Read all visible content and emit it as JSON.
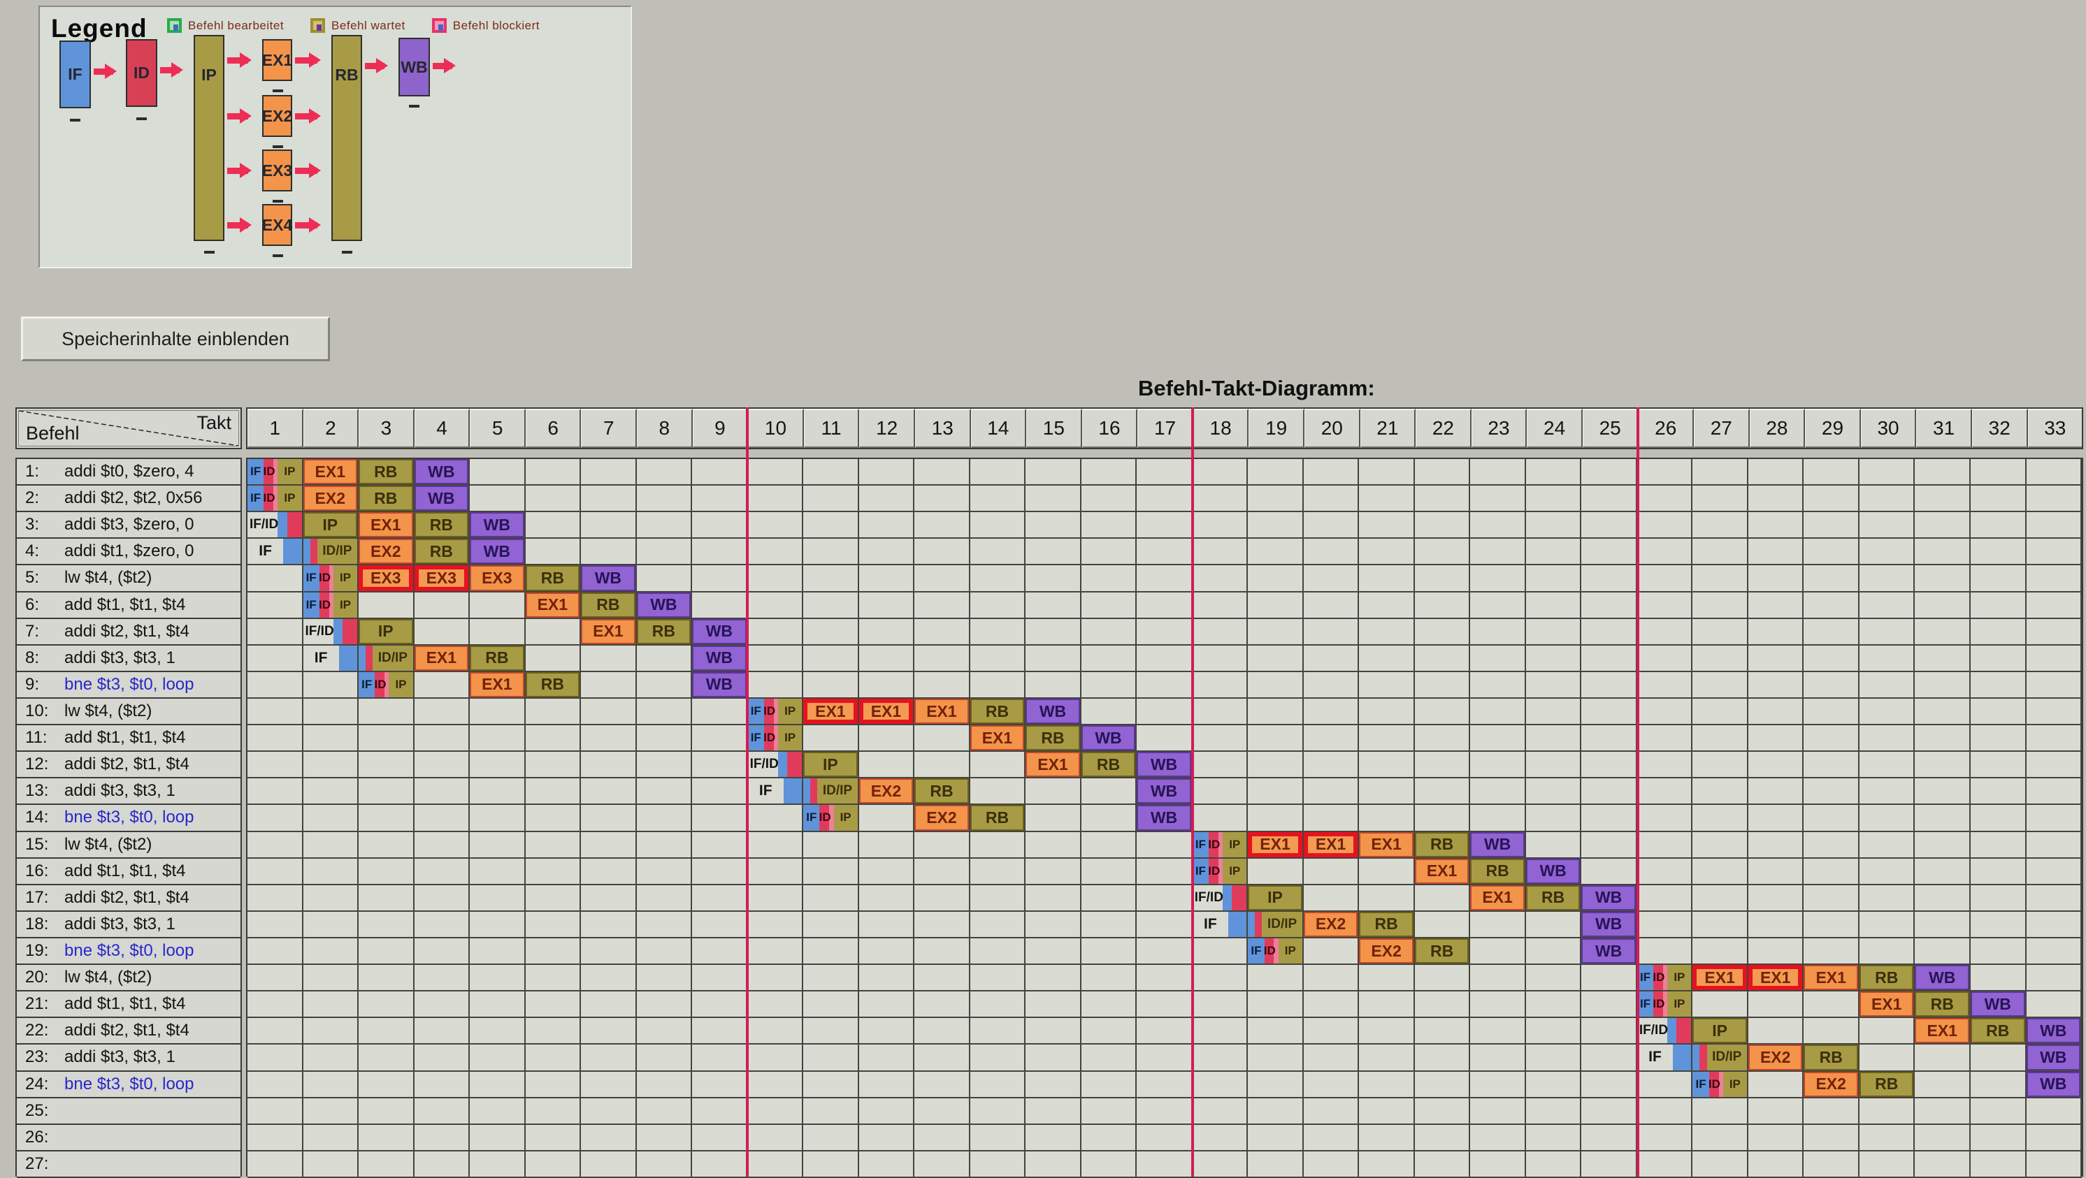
{
  "legend": {
    "title": "Legend",
    "items": [
      {
        "label": "Befehl bearbeitet",
        "type": "processed"
      },
      {
        "label": "Befehl wartet",
        "type": "waiting"
      },
      {
        "label": "Befehl blockiert",
        "type": "blocked"
      }
    ],
    "stages": [
      "IF",
      "ID",
      "IP",
      "EX1",
      "EX2",
      "EX3",
      "EX4",
      "RB",
      "WB"
    ]
  },
  "memory_button": {
    "label": "Speicherinhalte einblenden"
  },
  "diagram": {
    "title": "Befehl-Takt-Diagramm:",
    "corner": {
      "top": "Takt",
      "bottom": "Befehl"
    },
    "cycles": [
      1,
      2,
      3,
      4,
      5,
      6,
      7,
      8,
      9,
      10,
      11,
      12,
      13,
      14,
      15,
      16,
      17,
      18,
      19,
      20,
      21,
      22,
      23,
      24,
      25,
      26,
      27,
      28,
      29,
      30,
      31,
      32,
      33
    ],
    "iteration_lines_before_cycles": [
      10,
      18,
      26
    ],
    "colors": {
      "if_blue": "#5f94da",
      "id_red": "#e13b5c",
      "id_pink": "#ee7f9b",
      "ip_rb_olive": "#a89b45",
      "ex_orange": "#f3944a",
      "wb_purple": "#9263d2",
      "blocked_border": "#e6121f",
      "iteration_line": "#d61a55",
      "branch_text": "#2727cc"
    },
    "rows": [
      {
        "num": "1:",
        "text": "addi $t0, $zero, 4",
        "branch": false,
        "cells": [
          {
            "c": 1,
            "t": "ifidip",
            "l": "IF/ID/IP"
          },
          {
            "c": 2,
            "t": "ex",
            "l": "EX1"
          },
          {
            "c": 3,
            "t": "rb",
            "l": "RB"
          },
          {
            "c": 4,
            "t": "wb",
            "l": "WB"
          }
        ]
      },
      {
        "num": "2:",
        "text": "addi $t2, $t2, 0x56",
        "branch": false,
        "cells": [
          {
            "c": 1,
            "t": "ifidip",
            "l": "IF/ID/IP"
          },
          {
            "c": 2,
            "t": "ex",
            "l": "EX2"
          },
          {
            "c": 3,
            "t": "rb",
            "l": "RB"
          },
          {
            "c": 4,
            "t": "wb",
            "l": "WB"
          }
        ]
      },
      {
        "num": "3:",
        "text": "addi $t3, $zero, 0",
        "branch": false,
        "cells": [
          {
            "c": 1,
            "t": "ifid",
            "l": "IF/ID"
          },
          {
            "c": 2,
            "t": "ip",
            "l": "IP"
          },
          {
            "c": 3,
            "t": "ex",
            "l": "EX1"
          },
          {
            "c": 4,
            "t": "rb",
            "l": "RB"
          },
          {
            "c": 5,
            "t": "wb",
            "l": "WB"
          }
        ]
      },
      {
        "num": "4:",
        "text": "addi $t1, $zero, 0",
        "branch": false,
        "cells": [
          {
            "c": 1,
            "t": "if",
            "l": "IF"
          },
          {
            "c": 2,
            "t": "idip",
            "l": "ID/IP"
          },
          {
            "c": 3,
            "t": "ex",
            "l": "EX2"
          },
          {
            "c": 4,
            "t": "rb",
            "l": "RB"
          },
          {
            "c": 5,
            "t": "wb",
            "l": "WB"
          }
        ]
      },
      {
        "num": "5:",
        "text": "lw $t4, ($t2)",
        "branch": false,
        "cells": [
          {
            "c": 2,
            "t": "ifidip",
            "l": "IF/ID/IP"
          },
          {
            "c": 3,
            "t": "exb",
            "l": "EX3"
          },
          {
            "c": 4,
            "t": "exb",
            "l": "EX3"
          },
          {
            "c": 5,
            "t": "ex",
            "l": "EX3"
          },
          {
            "c": 6,
            "t": "rb",
            "l": "RB"
          },
          {
            "c": 7,
            "t": "wb",
            "l": "WB"
          }
        ]
      },
      {
        "num": "6:",
        "text": "add $t1, $t1, $t4",
        "branch": false,
        "cells": [
          {
            "c": 2,
            "t": "ifidip",
            "l": "IF/ID/IP"
          },
          {
            "c": 6,
            "t": "ex",
            "l": "EX1"
          },
          {
            "c": 7,
            "t": "rb",
            "l": "RB"
          },
          {
            "c": 8,
            "t": "wb",
            "l": "WB"
          }
        ]
      },
      {
        "num": "7:",
        "text": "addi $t2, $t1, $t4",
        "branch": false,
        "cells": [
          {
            "c": 2,
            "t": "ifid",
            "l": "IF/ID"
          },
          {
            "c": 3,
            "t": "ip",
            "l": "IP"
          },
          {
            "c": 7,
            "t": "ex",
            "l": "EX1"
          },
          {
            "c": 8,
            "t": "rb",
            "l": "RB"
          },
          {
            "c": 9,
            "t": "wb",
            "l": "WB"
          }
        ]
      },
      {
        "num": "8:",
        "text": "addi $t3, $t3, 1",
        "branch": false,
        "cells": [
          {
            "c": 2,
            "t": "if",
            "l": "IF"
          },
          {
            "c": 3,
            "t": "idip",
            "l": "ID/IP"
          },
          {
            "c": 4,
            "t": "ex",
            "l": "EX1"
          },
          {
            "c": 5,
            "t": "rb",
            "l": "RB"
          },
          {
            "c": 9,
            "t": "wb",
            "l": "WB"
          }
        ]
      },
      {
        "num": "9:",
        "text": "bne $t3, $t0, loop",
        "branch": true,
        "cells": [
          {
            "c": 3,
            "t": "ifidip",
            "l": "IF/ID/IP"
          },
          {
            "c": 5,
            "t": "ex",
            "l": "EX1"
          },
          {
            "c": 6,
            "t": "rb",
            "l": "RB"
          },
          {
            "c": 9,
            "t": "wb",
            "l": "WB"
          }
        ]
      },
      {
        "num": "10:",
        "text": "lw $t4, ($t2)",
        "branch": false,
        "cells": [
          {
            "c": 10,
            "t": "ifidip",
            "l": "IF/ID/IP"
          },
          {
            "c": 11,
            "t": "exb",
            "l": "EX1"
          },
          {
            "c": 12,
            "t": "exb",
            "l": "EX1"
          },
          {
            "c": 13,
            "t": "ex",
            "l": "EX1"
          },
          {
            "c": 14,
            "t": "rb",
            "l": "RB"
          },
          {
            "c": 15,
            "t": "wb",
            "l": "WB"
          }
        ]
      },
      {
        "num": "11:",
        "text": "add $t1, $t1, $t4",
        "branch": false,
        "cells": [
          {
            "c": 10,
            "t": "ifidip",
            "l": "IF/ID/IP"
          },
          {
            "c": 14,
            "t": "ex",
            "l": "EX1"
          },
          {
            "c": 15,
            "t": "rb",
            "l": "RB"
          },
          {
            "c": 16,
            "t": "wb",
            "l": "WB"
          }
        ]
      },
      {
        "num": "12:",
        "text": "addi $t2, $t1, $t4",
        "branch": false,
        "cells": [
          {
            "c": 10,
            "t": "ifid",
            "l": "IF/ID"
          },
          {
            "c": 11,
            "t": "ip",
            "l": "IP"
          },
          {
            "c": 15,
            "t": "ex",
            "l": "EX1"
          },
          {
            "c": 16,
            "t": "rb",
            "l": "RB"
          },
          {
            "c": 17,
            "t": "wb",
            "l": "WB"
          }
        ]
      },
      {
        "num": "13:",
        "text": "addi $t3, $t3, 1",
        "branch": false,
        "cells": [
          {
            "c": 10,
            "t": "if",
            "l": "IF"
          },
          {
            "c": 11,
            "t": "idip",
            "l": "ID/IP"
          },
          {
            "c": 12,
            "t": "ex",
            "l": "EX2"
          },
          {
            "c": 13,
            "t": "rb",
            "l": "RB"
          },
          {
            "c": 17,
            "t": "wb",
            "l": "WB"
          }
        ]
      },
      {
        "num": "14:",
        "text": "bne $t3, $t0, loop",
        "branch": true,
        "cells": [
          {
            "c": 11,
            "t": "ifidip",
            "l": "IF/ID/IP"
          },
          {
            "c": 13,
            "t": "ex",
            "l": "EX2"
          },
          {
            "c": 14,
            "t": "rb",
            "l": "RB"
          },
          {
            "c": 17,
            "t": "wb",
            "l": "WB"
          }
        ]
      },
      {
        "num": "15:",
        "text": "lw $t4, ($t2)",
        "branch": false,
        "cells": [
          {
            "c": 18,
            "t": "ifidip",
            "l": "IF/ID/IP"
          },
          {
            "c": 19,
            "t": "exb",
            "l": "EX1"
          },
          {
            "c": 20,
            "t": "exb",
            "l": "EX1"
          },
          {
            "c": 21,
            "t": "ex",
            "l": "EX1"
          },
          {
            "c": 22,
            "t": "rb",
            "l": "RB"
          },
          {
            "c": 23,
            "t": "wb",
            "l": "WB"
          }
        ]
      },
      {
        "num": "16:",
        "text": "add $t1, $t1, $t4",
        "branch": false,
        "cells": [
          {
            "c": 18,
            "t": "ifidip",
            "l": "IF/ID/IP"
          },
          {
            "c": 22,
            "t": "ex",
            "l": "EX1"
          },
          {
            "c": 23,
            "t": "rb",
            "l": "RB"
          },
          {
            "c": 24,
            "t": "wb",
            "l": "WB"
          }
        ]
      },
      {
        "num": "17:",
        "text": "addi $t2, $t1, $t4",
        "branch": false,
        "cells": [
          {
            "c": 18,
            "t": "ifid",
            "l": "IF/ID"
          },
          {
            "c": 19,
            "t": "ip",
            "l": "IP"
          },
          {
            "c": 23,
            "t": "ex",
            "l": "EX1"
          },
          {
            "c": 24,
            "t": "rb",
            "l": "RB"
          },
          {
            "c": 25,
            "t": "wb",
            "l": "WB"
          }
        ]
      },
      {
        "num": "18:",
        "text": "addi $t3, $t3, 1",
        "branch": false,
        "cells": [
          {
            "c": 18,
            "t": "if",
            "l": "IF"
          },
          {
            "c": 19,
            "t": "idip",
            "l": "ID/IP"
          },
          {
            "c": 20,
            "t": "ex",
            "l": "EX2"
          },
          {
            "c": 21,
            "t": "rb",
            "l": "RB"
          },
          {
            "c": 25,
            "t": "wb",
            "l": "WB"
          }
        ]
      },
      {
        "num": "19:",
        "text": "bne $t3, $t0, loop",
        "branch": true,
        "cells": [
          {
            "c": 19,
            "t": "ifidip",
            "l": "IF/ID/IP"
          },
          {
            "c": 21,
            "t": "ex",
            "l": "EX2"
          },
          {
            "c": 22,
            "t": "rb",
            "l": "RB"
          },
          {
            "c": 25,
            "t": "wb",
            "l": "WB"
          }
        ]
      },
      {
        "num": "20:",
        "text": "lw $t4, ($t2)",
        "branch": false,
        "cells": [
          {
            "c": 26,
            "t": "ifidip",
            "l": "IF/ID/IP"
          },
          {
            "c": 27,
            "t": "exb",
            "l": "EX1"
          },
          {
            "c": 28,
            "t": "exb",
            "l": "EX1"
          },
          {
            "c": 29,
            "t": "ex",
            "l": "EX1"
          },
          {
            "c": 30,
            "t": "rb",
            "l": "RB"
          },
          {
            "c": 31,
            "t": "wb",
            "l": "WB"
          }
        ]
      },
      {
        "num": "21:",
        "text": "add $t1, $t1, $t4",
        "branch": false,
        "cells": [
          {
            "c": 26,
            "t": "ifidip",
            "l": "IF/ID/IP"
          },
          {
            "c": 30,
            "t": "ex",
            "l": "EX1"
          },
          {
            "c": 31,
            "t": "rb",
            "l": "RB"
          },
          {
            "c": 32,
            "t": "wb",
            "l": "WB"
          }
        ]
      },
      {
        "num": "22:",
        "text": "addi $t2, $t1, $t4",
        "branch": false,
        "cells": [
          {
            "c": 26,
            "t": "ifid",
            "l": "IF/ID"
          },
          {
            "c": 27,
            "t": "ip",
            "l": "IP"
          },
          {
            "c": 31,
            "t": "ex",
            "l": "EX1"
          },
          {
            "c": 32,
            "t": "rb",
            "l": "RB"
          },
          {
            "c": 33,
            "t": "wb",
            "l": "WB"
          }
        ]
      },
      {
        "num": "23:",
        "text": "addi $t3, $t3, 1",
        "branch": false,
        "cells": [
          {
            "c": 26,
            "t": "if",
            "l": "IF"
          },
          {
            "c": 27,
            "t": "idip",
            "l": "ID/IP"
          },
          {
            "c": 28,
            "t": "ex",
            "l": "EX2"
          },
          {
            "c": 29,
            "t": "rb",
            "l": "RB"
          },
          {
            "c": 33,
            "t": "wb",
            "l": "WB"
          }
        ]
      },
      {
        "num": "24:",
        "text": "bne $t3, $t0, loop",
        "branch": true,
        "cells": [
          {
            "c": 27,
            "t": "ifidip",
            "l": "IF/ID/IP"
          },
          {
            "c": 29,
            "t": "ex",
            "l": "EX2"
          },
          {
            "c": 30,
            "t": "rb",
            "l": "RB"
          },
          {
            "c": 33,
            "t": "wb",
            "l": "WB"
          }
        ]
      },
      {
        "num": "25:",
        "text": "",
        "branch": false,
        "cells": []
      },
      {
        "num": "26:",
        "text": "",
        "branch": false,
        "cells": []
      },
      {
        "num": "27:",
        "text": "",
        "branch": false,
        "cells": []
      }
    ]
  }
}
